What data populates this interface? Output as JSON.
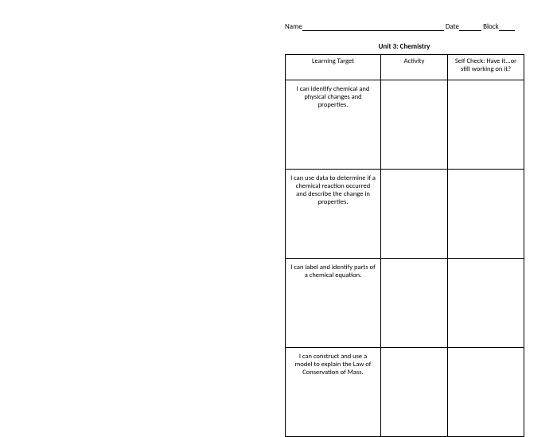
{
  "header": {
    "name_label": "Name",
    "date_label": "Date",
    "block_label": "Block"
  },
  "title": "Unit 3: Chemistry",
  "columns": {
    "c1": "Learning Target",
    "c2": "Activity",
    "c3": "Self Check: Have it...or still working on it?"
  },
  "rows": [
    {
      "target": "I can identify chemical and physical changes and properties.",
      "activity": "",
      "selfcheck": ""
    },
    {
      "target": "I can use data to determine if a chemical reaction occurred and describe the change in properties.",
      "activity": "",
      "selfcheck": ""
    },
    {
      "target": "I can label and identify parts of a chemical equation.",
      "activity": "",
      "selfcheck": ""
    },
    {
      "target": "I can construct and use a model to explain the Law of Conservation of Mass.",
      "activity": "",
      "selfcheck": ""
    }
  ]
}
